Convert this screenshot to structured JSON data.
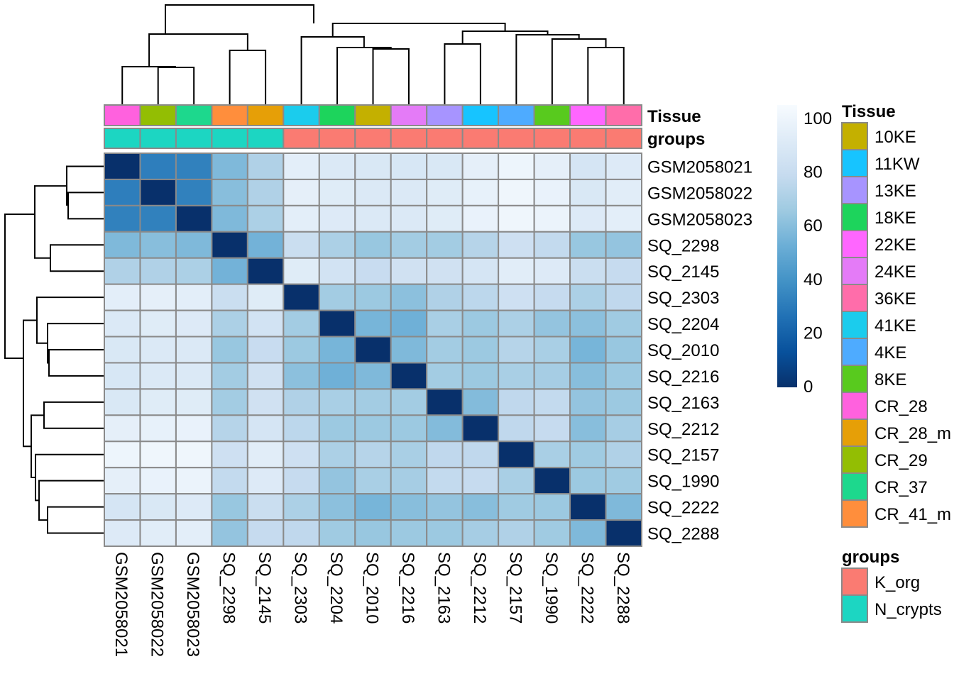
{
  "chart_data": {
    "type": "heatmap",
    "title": "",
    "row_labels": [
      "GSM2058021",
      "GSM2058022",
      "GSM2058023",
      "SQ_2298",
      "SQ_2145",
      "SQ_2303",
      "SQ_2204",
      "SQ_2010",
      "SQ_2216",
      "SQ_2163",
      "SQ_2212",
      "SQ_2157",
      "SQ_1990",
      "SQ_2222",
      "SQ_2288"
    ],
    "col_labels": [
      "GSM2058021",
      "GSM2058022",
      "GSM2058023",
      "SQ_2298",
      "SQ_2145",
      "SQ_2303",
      "SQ_2204",
      "SQ_2010",
      "SQ_2216",
      "SQ_2163",
      "SQ_2212",
      "SQ_2157",
      "SQ_1990",
      "SQ_2222",
      "SQ_2288"
    ],
    "values": [
      [
        0,
        30,
        31,
        55,
        68,
        90,
        86,
        85,
        84,
        85,
        91,
        95,
        91,
        83,
        87
      ],
      [
        30,
        0,
        31,
        57,
        68,
        91,
        88,
        86,
        86,
        88,
        92,
        96,
        93,
        85,
        89
      ],
      [
        31,
        31,
        0,
        55,
        67,
        90,
        87,
        86,
        86,
        88,
        93,
        96,
        94,
        87,
        90
      ],
      [
        55,
        57,
        55,
        0,
        52,
        77,
        67,
        61,
        64,
        64,
        70,
        79,
        74,
        61,
        60
      ],
      [
        68,
        68,
        67,
        52,
        0,
        88,
        81,
        76,
        80,
        80,
        83,
        89,
        87,
        77,
        75
      ],
      [
        90,
        91,
        90,
        77,
        88,
        0,
        64,
        62,
        58,
        68,
        72,
        79,
        75,
        67,
        73
      ],
      [
        86,
        88,
        87,
        67,
        81,
        64,
        0,
        53,
        51,
        66,
        62,
        67,
        60,
        58,
        63
      ],
      [
        85,
        86,
        86,
        61,
        76,
        62,
        53,
        0,
        55,
        64,
        62,
        70,
        66,
        53,
        61
      ],
      [
        84,
        86,
        86,
        64,
        80,
        58,
        51,
        55,
        0,
        64,
        62,
        66,
        65,
        57,
        62
      ],
      [
        85,
        88,
        88,
        64,
        80,
        68,
        66,
        64,
        64,
        0,
        56,
        73,
        74,
        60,
        62
      ],
      [
        91,
        92,
        93,
        70,
        83,
        72,
        62,
        62,
        62,
        56,
        0,
        73,
        75,
        57,
        65
      ],
      [
        95,
        96,
        96,
        79,
        89,
        79,
        67,
        70,
        66,
        73,
        73,
        0,
        66,
        63,
        68
      ],
      [
        91,
        93,
        94,
        74,
        87,
        75,
        60,
        66,
        65,
        74,
        75,
        66,
        0,
        62,
        63
      ],
      [
        83,
        85,
        87,
        61,
        77,
        67,
        58,
        53,
        57,
        60,
        57,
        63,
        62,
        0,
        55
      ],
      [
        87,
        89,
        90,
        60,
        75,
        73,
        63,
        61,
        62,
        62,
        65,
        68,
        63,
        55,
        0
      ]
    ],
    "value_range": [
      0,
      100
    ],
    "colorbar": {
      "ticks": [
        "0",
        "20",
        "40",
        "60",
        "80",
        "100"
      ],
      "palette": [
        "#08306B",
        "#08519C",
        "#2171B5",
        "#4292C6",
        "#6BAED6",
        "#9ECAE1",
        "#C6DBEF",
        "#DEEBF7",
        "#F7FBFF"
      ]
    },
    "annotations": {
      "Tissue": [
        "CR_28",
        "CR_29",
        "CR_37",
        "CR_41_m",
        "CR_28_m",
        "41KE",
        "18KE",
        "10KE",
        "24KE",
        "13KE",
        "11KW",
        "4KE",
        "8KE",
        "22KE",
        "36KE"
      ],
      "groups": [
        "N_crypts",
        "N_crypts",
        "N_crypts",
        "N_crypts",
        "N_crypts",
        "K_org",
        "K_org",
        "K_org",
        "K_org",
        "K_org",
        "K_org",
        "K_org",
        "K_org",
        "K_org",
        "K_org"
      ]
    },
    "annotation_track_labels": [
      "Tissue",
      "groups"
    ],
    "legend": {
      "Tissue": {
        "title": "Tissue",
        "items": [
          {
            "label": "10KE",
            "color": "#C4B000"
          },
          {
            "label": "11KW",
            "color": "#17C4FF"
          },
          {
            "label": "13KE",
            "color": "#A794FF"
          },
          {
            "label": "18KE",
            "color": "#1DD45C"
          },
          {
            "label": "22KE",
            "color": "#FF66FF"
          },
          {
            "label": "24KE",
            "color": "#E47BF7"
          },
          {
            "label": "36KE",
            "color": "#FF6DAA"
          },
          {
            "label": "41KE",
            "color": "#1BCCED"
          },
          {
            "label": "4KE",
            "color": "#4EABFF"
          },
          {
            "label": "8KE",
            "color": "#58CA1E"
          },
          {
            "label": "CR_28",
            "color": "#FF61DE"
          },
          {
            "label": "CR_28_m",
            "color": "#E69F07"
          },
          {
            "label": "CR_29",
            "color": "#93BE03"
          },
          {
            "label": "CR_37",
            "color": "#1DD88D"
          },
          {
            "label": "CR_41_m",
            "color": "#FF8E3C"
          }
        ]
      },
      "groups": {
        "title": "groups",
        "items": [
          {
            "label": "K_org",
            "color": "#FA7B72"
          },
          {
            "label": "N_crypts",
            "color": "#1CD6C2"
          }
        ]
      }
    },
    "grid": true,
    "legend_position": "right"
  }
}
